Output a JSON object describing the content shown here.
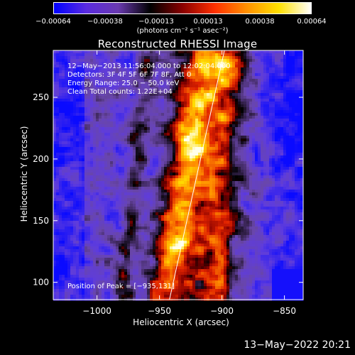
{
  "chart_data": {
    "type": "heatmap",
    "title": "Reconstructed RHESSI Image",
    "xlabel": "Heliocentric X (arcsec)",
    "ylabel": "Heliocentric Y (arcsec)",
    "xlim": [
      -1035,
      -835
    ],
    "ylim": [
      86,
      288
    ],
    "xticks": [
      -1000,
      -950,
      -900,
      -850
    ],
    "xtick_labels": [
      "−1000",
      "−950",
      "−900",
      "−850"
    ],
    "yticks": [
      100,
      150,
      200,
      250
    ],
    "ytick_labels": [
      "100",
      "150",
      "200",
      "250"
    ],
    "colorbar": {
      "ticks": [
        -0.00064,
        -0.00038,
        -0.00013,
        0.00013,
        0.00038,
        0.00064
      ],
      "tick_labels": [
        "−0.00064",
        "−0.00038",
        "−0.00013",
        "0.00013",
        "0.00038",
        "0.00064"
      ],
      "units_label": "(photons cm⁻² s⁻¹ asec⁻²)",
      "colors": [
        "#0000ff",
        "#5a2be0",
        "#6a3ab0",
        "#000000",
        "#8a0000",
        "#ff3000",
        "#ff9000",
        "#ffe000",
        "#ffffff"
      ]
    },
    "info_lines": [
      "12−May−2013 11:56:04.000 to 12:02:04.000",
      "Detectors: 3F 4F 5F 6F 7F 8F, Att 0",
      "Energy Range: 25.0 − 50.0 keV",
      "Clean     Total counts: 1.22E+04"
    ],
    "peak_label": "Position of Peak = [−935,131]",
    "peak": [
      -935,
      131
    ],
    "limb_line": [
      [
        -942,
        86
      ],
      [
        -898,
        288
      ]
    ]
  },
  "footer_timestamp": "13−May−2022 20:21"
}
